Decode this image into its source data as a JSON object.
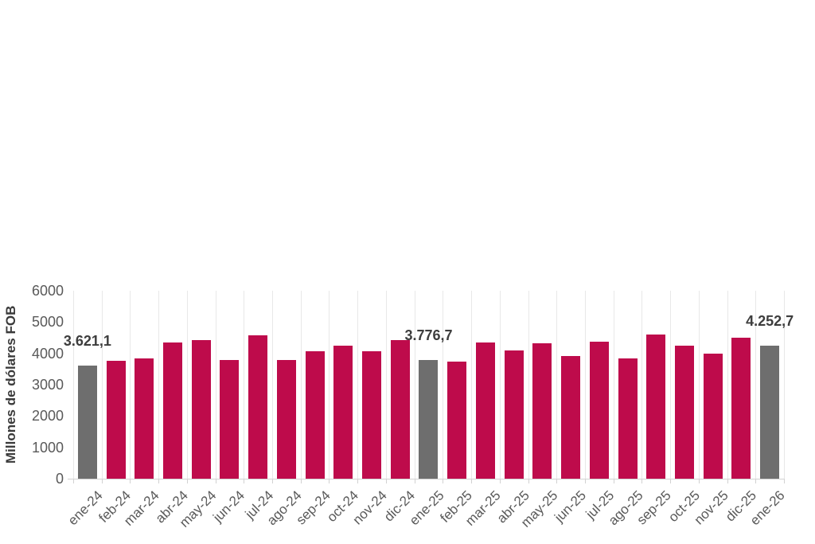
{
  "chart_data": {
    "type": "bar",
    "title": "",
    "xlabel": "",
    "ylabel": "Millones de dólares FOB",
    "ylim": [
      0,
      6000
    ],
    "yticks": [
      0,
      1000,
      2000,
      3000,
      4000,
      5000,
      6000
    ],
    "grid": "vertical category separators only",
    "legend_position": "none",
    "categories": [
      "ene-24",
      "feb-24",
      "mar-24",
      "abr-24",
      "may-24",
      "jun-24",
      "jul-24",
      "ago-24",
      "sep-24",
      "oct-24",
      "nov-24",
      "dic-24",
      "ene-25",
      "feb-25",
      "mar-25",
      "abr-25",
      "may-25",
      "jun-25",
      "jul-25",
      "ago-25",
      "sep-25",
      "oct-25",
      "nov-25",
      "dic-25",
      "ene-26"
    ],
    "values": [
      3621.1,
      3760,
      3830,
      4360,
      4430,
      3800,
      4570,
      3780,
      4060,
      4250,
      4080,
      4430,
      3776.7,
      3740,
      4360,
      4090,
      4310,
      3910,
      4380,
      3830,
      4610,
      4250,
      3980,
      4510,
      4252.7
    ],
    "highlighted_indices": [
      0,
      12,
      24
    ],
    "value_labels": {
      "0": "3.621,1",
      "12": "3.776,7",
      "24": "4.252,7"
    },
    "colors": {
      "bar": "#BE0B4B",
      "highlight_bar": "#6E6E6E",
      "gridline": "#E8E8E8",
      "axis_line": "#D2D2D2",
      "tick_text": "#595959",
      "value_label_text": "#3D3D3D",
      "background": "#FFFFFF"
    }
  }
}
